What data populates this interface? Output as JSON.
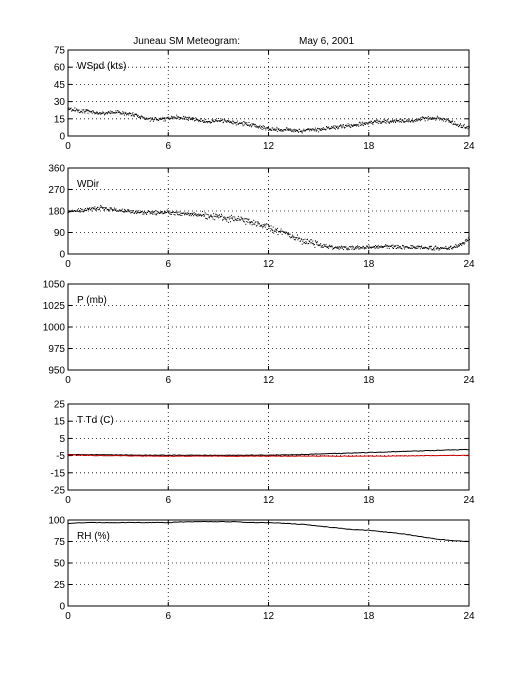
{
  "figure": {
    "title": "Juneau SM Meteogram:",
    "date": "May  6, 2001"
  },
  "chart_data": [
    {
      "type": "scatter",
      "label": "WSpd (kts)",
      "x_ticks": [
        0,
        6,
        12,
        18,
        24
      ],
      "xlim": [
        0,
        24
      ],
      "ylim": [
        0,
        75
      ],
      "y_ticks": [
        0,
        15,
        30,
        45,
        60,
        75
      ],
      "grid": true,
      "series": [
        {
          "color": "#000000",
          "style": "dots",
          "x": [
            0,
            0.5,
            1,
            1.5,
            2,
            2.5,
            3,
            3.5,
            4,
            4.5,
            5,
            5.5,
            6,
            6.5,
            7,
            7.5,
            8,
            8.5,
            9,
            9.5,
            10,
            10.5,
            11,
            11.5,
            12,
            12.5,
            13,
            13.5,
            14,
            14.5,
            15,
            15.5,
            16,
            16.5,
            17,
            17.5,
            18,
            18.5,
            19,
            19.5,
            20,
            20.5,
            21,
            21.5,
            22,
            22.5,
            23,
            23.5,
            24
          ],
          "y": [
            24,
            23,
            22,
            21,
            20,
            21,
            21,
            20,
            19,
            16,
            15,
            15,
            16,
            17,
            16,
            15,
            14,
            13,
            14,
            13,
            12,
            11,
            10,
            8,
            7,
            6,
            6,
            5,
            5,
            6,
            6,
            7,
            8,
            9,
            10,
            11,
            12,
            13,
            13,
            13,
            14,
            14,
            15,
            16,
            16,
            15,
            12,
            9,
            8
          ]
        }
      ]
    },
    {
      "type": "scatter",
      "label": "WDir",
      "x_ticks": [
        0,
        6,
        12,
        18,
        24
      ],
      "xlim": [
        0,
        24
      ],
      "ylim": [
        0,
        360
      ],
      "y_ticks": [
        0,
        90,
        180,
        270,
        360
      ],
      "grid": true,
      "series": [
        {
          "color": "#000000",
          "style": "dots",
          "x": [
            0,
            0.5,
            1,
            1.5,
            2,
            2.5,
            3,
            3.5,
            4,
            4.5,
            5,
            5.5,
            6,
            6.5,
            7,
            7.5,
            8,
            8.5,
            9,
            9.5,
            10,
            10.5,
            11,
            11.5,
            12,
            12.5,
            13,
            13.5,
            14,
            14.5,
            15,
            15.5,
            16,
            16.5,
            17,
            17.5,
            18,
            18.5,
            19,
            19.5,
            20,
            20.5,
            21,
            21.5,
            22,
            22.5,
            23,
            23.5,
            24
          ],
          "y": [
            180,
            182,
            185,
            192,
            196,
            190,
            185,
            180,
            178,
            176,
            175,
            174,
            178,
            175,
            170,
            168,
            165,
            160,
            158,
            152,
            150,
            140,
            135,
            125,
            115,
            100,
            90,
            75,
            60,
            50,
            40,
            35,
            30,
            28,
            27,
            28,
            30,
            32,
            33,
            33,
            32,
            31,
            30,
            28,
            26,
            25,
            30,
            40,
            70
          ]
        }
      ]
    },
    {
      "type": "line",
      "label": "P (mb)",
      "x_ticks": [
        0,
        6,
        12,
        18,
        24
      ],
      "xlim": [
        0,
        24
      ],
      "ylim": [
        950,
        1050
      ],
      "y_ticks": [
        950,
        975,
        1000,
        1025,
        1050
      ],
      "grid": true,
      "series": []
    },
    {
      "type": "line",
      "label": "T Td (C)",
      "x_ticks": [
        0,
        6,
        12,
        18,
        24
      ],
      "xlim": [
        0,
        24
      ],
      "ylim": [
        -25,
        25
      ],
      "y_ticks": [
        -25,
        -15,
        -5,
        5,
        15,
        25
      ],
      "grid": true,
      "series": [
        {
          "color": "#000000",
          "style": "line",
          "x": [
            0,
            1,
            2,
            3,
            4,
            5,
            6,
            7,
            8,
            9,
            10,
            11,
            12,
            13,
            14,
            15,
            16,
            17,
            18,
            19,
            20,
            21,
            22,
            23,
            24
          ],
          "y": [
            -4.3,
            -4.4,
            -4.5,
            -4.6,
            -4.7,
            -4.8,
            -4.8,
            -4.8,
            -4.8,
            -4.8,
            -4.8,
            -4.7,
            -4.7,
            -4.6,
            -4.4,
            -4.1,
            -3.8,
            -3.5,
            -3.2,
            -2.9,
            -2.6,
            -2.3,
            -2.0,
            -1.7,
            -1.5
          ]
        },
        {
          "color": "#cc0000",
          "style": "line",
          "x": [
            0,
            1,
            2,
            3,
            4,
            5,
            6,
            7,
            8,
            9,
            10,
            11,
            12,
            13,
            14,
            15,
            16,
            17,
            18,
            19,
            20,
            21,
            22,
            23,
            24
          ],
          "y": [
            -4.6,
            -4.8,
            -5.0,
            -5.1,
            -5.2,
            -5.3,
            -5.3,
            -5.3,
            -5.3,
            -5.3,
            -5.3,
            -5.3,
            -5.3,
            -5.3,
            -5.3,
            -5.3,
            -5.3,
            -5.3,
            -5.3,
            -5.3,
            -5.2,
            -5.1,
            -5.0,
            -4.9,
            -4.8
          ]
        }
      ]
    },
    {
      "type": "line",
      "label": "RH (%)",
      "x_ticks": [
        0,
        6,
        12,
        18,
        24
      ],
      "xlim": [
        0,
        24
      ],
      "ylim": [
        0,
        100
      ],
      "y_ticks": [
        0,
        25,
        50,
        75,
        100
      ],
      "grid": true,
      "series": [
        {
          "color": "#000000",
          "style": "line",
          "x": [
            0,
            1,
            2,
            3,
            4,
            5,
            6,
            7,
            8,
            9,
            10,
            11,
            12,
            13,
            14,
            15,
            16,
            17,
            18,
            19,
            20,
            21,
            22,
            23,
            24
          ],
          "y": [
            96,
            97,
            97,
            97,
            97,
            97,
            97,
            98,
            98,
            98,
            98,
            97,
            97,
            96,
            95,
            93,
            91,
            89,
            88,
            86,
            84,
            81,
            78,
            76,
            75
          ]
        }
      ]
    }
  ]
}
